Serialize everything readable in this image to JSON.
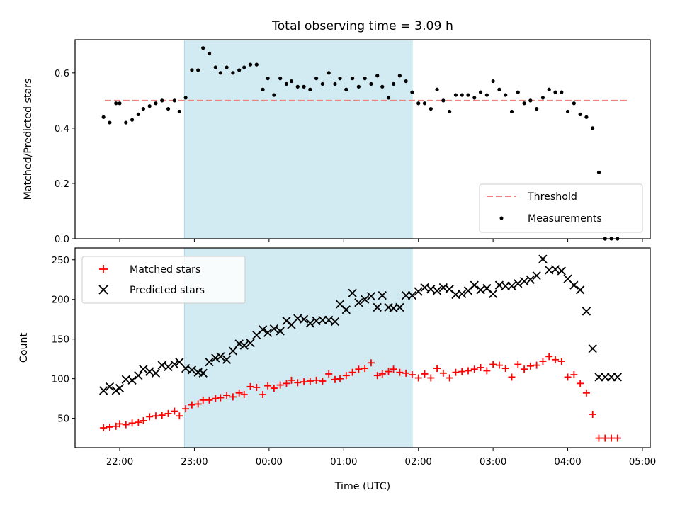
{
  "chart_data": [
    {
      "type": "scatter",
      "title": "Total observing time = 3.09 h",
      "xlabel": "",
      "ylabel": "Matched/Predicted stars",
      "ylim": [
        0,
        0.72
      ],
      "yticks": [
        "0.0",
        "0.2",
        "0.4",
        "0.6"
      ],
      "ytick_values": [
        0,
        0.2,
        0.4,
        0.6
      ],
      "shaded_interval": [
        "22:52",
        "01:55"
      ],
      "threshold": {
        "name": "Threshold",
        "value": 0.5,
        "x_range": [
          "21:48",
          "04:48"
        ],
        "color": "#f08080"
      },
      "series": [
        {
          "name": "Measurements",
          "color": "#000000",
          "x": [
            "21:47",
            "21:52",
            "21:57",
            "22:00",
            "22:05",
            "22:10",
            "22:15",
            "22:19",
            "22:24",
            "22:29",
            "22:34",
            "22:39",
            "22:44",
            "22:48",
            "22:53",
            "22:58",
            "23:03",
            "23:07",
            "23:12",
            "23:17",
            "23:21",
            "23:26",
            "23:31",
            "23:36",
            "23:40",
            "23:45",
            "23:50",
            "23:55",
            "23:59",
            "00:04",
            "00:09",
            "00:14",
            "00:18",
            "00:23",
            "00:28",
            "00:33",
            "00:38",
            "00:43",
            "00:48",
            "00:53",
            "00:57",
            "01:02",
            "01:07",
            "01:12",
            "01:17",
            "01:22",
            "01:27",
            "01:31",
            "01:36",
            "01:40",
            "01:45",
            "01:50",
            "01:55",
            "02:00",
            "02:05",
            "02:10",
            "02:15",
            "02:20",
            "02:25",
            "02:30",
            "02:35",
            "02:40",
            "02:45",
            "02:50",
            "02:55",
            "03:00",
            "03:05",
            "03:10",
            "03:15",
            "03:20",
            "03:25",
            "03:30",
            "03:35",
            "03:40",
            "03:45",
            "03:50",
            "03:55",
            "04:00",
            "04:05",
            "04:10",
            "04:15",
            "04:20",
            "04:25",
            "04:30",
            "04:35",
            "04:40"
          ],
          "y": [
            0.44,
            0.42,
            0.49,
            0.49,
            0.42,
            0.43,
            0.45,
            0.47,
            0.48,
            0.49,
            0.5,
            0.47,
            0.5,
            0.46,
            0.51,
            0.61,
            0.61,
            0.69,
            0.67,
            0.62,
            0.6,
            0.62,
            0.6,
            0.61,
            0.62,
            0.63,
            0.63,
            0.54,
            0.58,
            0.52,
            0.58,
            0.56,
            0.57,
            0.55,
            0.55,
            0.54,
            0.58,
            0.56,
            0.6,
            0.56,
            0.58,
            0.54,
            0.58,
            0.55,
            0.58,
            0.56,
            0.59,
            0.55,
            0.51,
            0.56,
            0.59,
            0.57,
            0.53,
            0.49,
            0.49,
            0.47,
            0.54,
            0.5,
            0.46,
            0.52,
            0.52,
            0.52,
            0.51,
            0.53,
            0.52,
            0.57,
            0.54,
            0.52,
            0.46,
            0.53,
            0.49,
            0.5,
            0.47,
            0.51,
            0.54,
            0.53,
            0.53,
            0.46,
            0.49,
            0.45,
            0.44,
            0.4,
            0.24,
            0.0,
            0.0,
            0.0
          ]
        }
      ],
      "legend": {
        "position": "lower right",
        "entries": [
          "Threshold",
          "Measurements"
        ]
      }
    },
    {
      "type": "scatter",
      "title": "",
      "xlabel": "Time (UTC)",
      "ylabel": "Count",
      "ylim": [
        13,
        265
      ],
      "yticks": [
        "50",
        "100",
        "150",
        "200",
        "250"
      ],
      "ytick_values": [
        50,
        100,
        150,
        200,
        250
      ],
      "xticks": [
        "22:00",
        "23:00",
        "00:00",
        "01:00",
        "02:00",
        "03:00",
        "04:00",
        "05:00"
      ],
      "shaded_interval": [
        "22:52",
        "01:55"
      ],
      "series": [
        {
          "name": "Matched stars",
          "color": "#ff0000",
          "marker": "plus",
          "x": [
            "21:47",
            "21:52",
            "21:57",
            "22:00",
            "22:05",
            "22:10",
            "22:15",
            "22:19",
            "22:24",
            "22:29",
            "22:34",
            "22:39",
            "22:44",
            "22:48",
            "22:53",
            "22:58",
            "23:03",
            "23:07",
            "23:12",
            "23:17",
            "23:21",
            "23:26",
            "23:31",
            "23:36",
            "23:40",
            "23:45",
            "23:50",
            "23:55",
            "23:59",
            "00:04",
            "00:09",
            "00:14",
            "00:18",
            "00:23",
            "00:28",
            "00:33",
            "00:38",
            "00:43",
            "00:48",
            "00:53",
            "00:57",
            "01:02",
            "01:07",
            "01:12",
            "01:17",
            "01:22",
            "01:27",
            "01:31",
            "01:36",
            "01:40",
            "01:45",
            "01:50",
            "01:55",
            "02:00",
            "02:05",
            "02:10",
            "02:15",
            "02:20",
            "02:25",
            "02:30",
            "02:35",
            "02:40",
            "02:45",
            "02:50",
            "02:55",
            "03:00",
            "03:05",
            "03:10",
            "03:15",
            "03:20",
            "03:25",
            "03:30",
            "03:35",
            "03:40",
            "03:45",
            "03:50",
            "03:55",
            "04:00",
            "04:05",
            "04:10",
            "04:15",
            "04:20",
            "04:25",
            "04:30",
            "04:35",
            "04:40"
          ],
          "y": [
            38,
            39,
            40,
            43,
            42,
            44,
            45,
            47,
            52,
            53,
            54,
            56,
            59,
            53,
            62,
            67,
            68,
            73,
            73,
            75,
            76,
            79,
            77,
            82,
            80,
            90,
            89,
            80,
            91,
            88,
            92,
            94,
            98,
            95,
            96,
            97,
            98,
            97,
            106,
            99,
            100,
            104,
            108,
            112,
            113,
            120,
            104,
            106,
            109,
            112,
            108,
            107,
            105,
            101,
            106,
            101,
            113,
            107,
            101,
            108,
            109,
            110,
            112,
            114,
            110,
            118,
            117,
            113,
            102,
            118,
            112,
            116,
            117,
            122,
            128,
            124,
            122,
            102,
            105,
            94,
            82,
            55,
            25,
            25,
            25,
            25
          ]
        },
        {
          "name": "Predicted stars",
          "color": "#000000",
          "marker": "x",
          "x": [
            "21:47",
            "21:52",
            "21:57",
            "22:00",
            "22:05",
            "22:10",
            "22:15",
            "22:19",
            "22:24",
            "22:29",
            "22:34",
            "22:39",
            "22:44",
            "22:48",
            "22:53",
            "22:58",
            "23:03",
            "23:07",
            "23:12",
            "23:17",
            "23:21",
            "23:26",
            "23:31",
            "23:36",
            "23:40",
            "23:45",
            "23:50",
            "23:55",
            "23:59",
            "00:04",
            "00:09",
            "00:14",
            "00:18",
            "00:23",
            "00:28",
            "00:33",
            "00:38",
            "00:43",
            "00:48",
            "00:53",
            "00:57",
            "01:02",
            "01:07",
            "01:12",
            "01:17",
            "01:22",
            "01:27",
            "01:31",
            "01:36",
            "01:40",
            "01:45",
            "01:50",
            "01:55",
            "02:00",
            "02:05",
            "02:10",
            "02:15",
            "02:20",
            "02:25",
            "02:30",
            "02:35",
            "02:40",
            "02:45",
            "02:50",
            "02:55",
            "03:00",
            "03:05",
            "03:10",
            "03:15",
            "03:20",
            "03:25",
            "03:30",
            "03:35",
            "03:40",
            "03:45",
            "03:50",
            "03:55",
            "04:00",
            "04:05",
            "04:10",
            "04:15",
            "04:20",
            "04:25",
            "04:30",
            "04:35",
            "04:40"
          ],
          "y": [
            85,
            90,
            85,
            88,
            99,
            98,
            104,
            112,
            109,
            107,
            117,
            115,
            118,
            121,
            113,
            111,
            108,
            107,
            121,
            126,
            128,
            124,
            135,
            144,
            142,
            145,
            155,
            162,
            158,
            163,
            160,
            173,
            168,
            176,
            175,
            170,
            173,
            174,
            174,
            172,
            194,
            187,
            208,
            196,
            200,
            204,
            190,
            205,
            190,
            189,
            190,
            205,
            205,
            210,
            215,
            213,
            211,
            215,
            213,
            206,
            207,
            211,
            218,
            212,
            214,
            207,
            218,
            217,
            217,
            220,
            223,
            225,
            230,
            251,
            237,
            238,
            236,
            226,
            218,
            212,
            185,
            138,
            102,
            102,
            102,
            102
          ]
        }
      ],
      "legend": {
        "position": "upper left",
        "entries": [
          "Matched stars",
          "Predicted stars"
        ]
      }
    }
  ]
}
